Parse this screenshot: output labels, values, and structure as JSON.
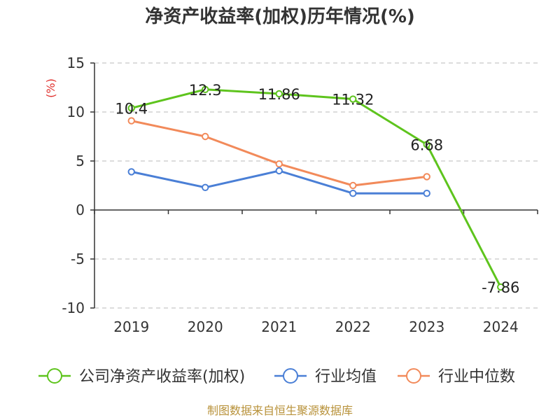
{
  "chart_data": {
    "type": "line",
    "title": "净资产收益率(加权)历年情况(%)",
    "ylabel": "(%)",
    "categories": [
      "2019",
      "2020",
      "2021",
      "2022",
      "2023",
      "2024"
    ],
    "ylim": [
      -10,
      15
    ],
    "yticks": [
      15,
      10,
      5,
      0,
      -5,
      -10
    ],
    "grid": true,
    "legend_position": "bottom",
    "series": [
      {
        "name": "公司净资产收益率(加权)",
        "color": "#5ec41d",
        "values": [
          10.4,
          12.3,
          11.86,
          11.32,
          6.68,
          -7.86
        ],
        "labels": [
          "10.4",
          "12.3",
          "11.86",
          "11.32",
          "6.68",
          "-7.86"
        ]
      },
      {
        "name": "行业均值",
        "color": "#4a7fd6",
        "values": [
          3.9,
          2.3,
          4.0,
          1.7,
          1.7,
          null
        ]
      },
      {
        "name": "行业中位数",
        "color": "#f28a5a",
        "values": [
          9.1,
          7.5,
          4.7,
          2.5,
          3.4,
          null
        ]
      }
    ],
    "source": "制图数据来自恒生聚源数据库"
  }
}
